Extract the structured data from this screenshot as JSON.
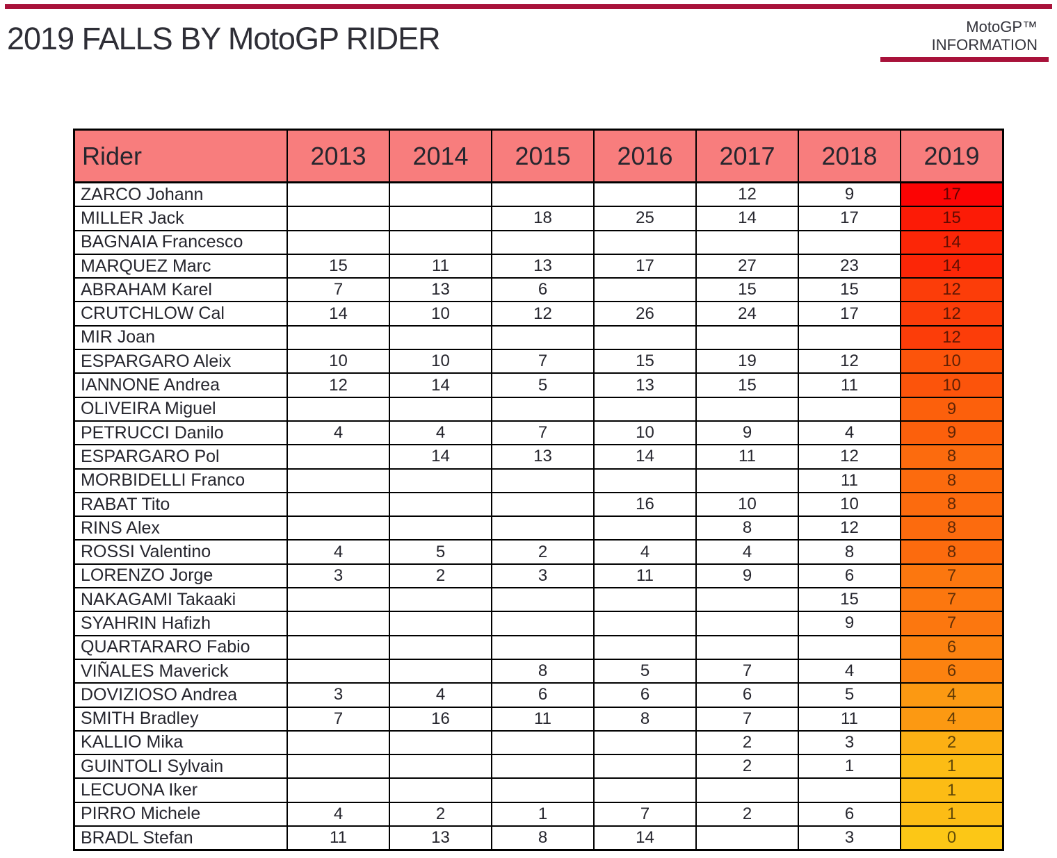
{
  "header": {
    "title": "2019 FALLS BY MotoGP RIDER",
    "brand_line1": "MotoGP™",
    "brand_line2": "INFORMATION"
  },
  "colors": {
    "accent_crimson": "#A8123A",
    "header_pink": "#F87D7D",
    "grid_black": "#000000",
    "cell_text": "#26262E",
    "scale_high": "#FC0404",
    "scale_low": "#FCC716"
  },
  "chart_data": {
    "type": "table",
    "title": "2019 FALLS BY MotoGP RIDER",
    "columns": [
      "Rider",
      "2013",
      "2014",
      "2015",
      "2016",
      "2017",
      "2018",
      "2019"
    ],
    "heatmap_column": "2019",
    "scale": {
      "max_value": 17,
      "min_value": 0,
      "max_color": "#FC0404",
      "min_color": "#FCC716"
    },
    "rows": [
      {
        "rider": "ZARCO Johann",
        "values": [
          null,
          null,
          null,
          null,
          12,
          9,
          17
        ]
      },
      {
        "rider": "MILLER Jack",
        "values": [
          null,
          null,
          18,
          25,
          14,
          17,
          15
        ]
      },
      {
        "rider": "BAGNAIA Francesco",
        "values": [
          null,
          null,
          null,
          null,
          null,
          null,
          14
        ]
      },
      {
        "rider": "MARQUEZ Marc",
        "values": [
          15,
          11,
          13,
          17,
          27,
          23,
          14
        ]
      },
      {
        "rider": "ABRAHAM Karel",
        "values": [
          7,
          13,
          6,
          null,
          15,
          15,
          12
        ]
      },
      {
        "rider": "CRUTCHLOW Cal",
        "values": [
          14,
          10,
          12,
          26,
          24,
          17,
          12
        ]
      },
      {
        "rider": "MIR Joan",
        "values": [
          null,
          null,
          null,
          null,
          null,
          null,
          12
        ]
      },
      {
        "rider": "ESPARGARO Aleix",
        "values": [
          10,
          10,
          7,
          15,
          19,
          12,
          10
        ]
      },
      {
        "rider": "IANNONE Andrea",
        "values": [
          12,
          14,
          5,
          13,
          15,
          11,
          10
        ]
      },
      {
        "rider": "OLIVEIRA Miguel",
        "values": [
          null,
          null,
          null,
          null,
          null,
          null,
          9
        ]
      },
      {
        "rider": "PETRUCCI Danilo",
        "values": [
          4,
          4,
          7,
          10,
          9,
          4,
          9
        ]
      },
      {
        "rider": "ESPARGARO Pol",
        "values": [
          null,
          14,
          13,
          14,
          11,
          12,
          8
        ]
      },
      {
        "rider": "MORBIDELLI Franco",
        "values": [
          null,
          null,
          null,
          null,
          null,
          11,
          8
        ]
      },
      {
        "rider": "RABAT Tito",
        "values": [
          null,
          null,
          null,
          16,
          10,
          10,
          8
        ]
      },
      {
        "rider": "RINS Alex",
        "values": [
          null,
          null,
          null,
          null,
          8,
          12,
          8
        ]
      },
      {
        "rider": "ROSSI Valentino",
        "values": [
          4,
          5,
          2,
          4,
          4,
          8,
          8
        ]
      },
      {
        "rider": "LORENZO Jorge",
        "values": [
          3,
          2,
          3,
          11,
          9,
          6,
          7
        ]
      },
      {
        "rider": "NAKAGAMI Takaaki",
        "values": [
          null,
          null,
          null,
          null,
          null,
          15,
          7
        ]
      },
      {
        "rider": "SYAHRIN Hafizh",
        "values": [
          null,
          null,
          null,
          null,
          null,
          9,
          7
        ]
      },
      {
        "rider": "QUARTARARO Fabio",
        "values": [
          null,
          null,
          null,
          null,
          null,
          null,
          6
        ]
      },
      {
        "rider": "VIÑALES Maverick",
        "values": [
          null,
          null,
          8,
          5,
          7,
          4,
          6
        ]
      },
      {
        "rider": "DOVIZIOSO Andrea",
        "values": [
          3,
          4,
          6,
          6,
          6,
          5,
          4
        ]
      },
      {
        "rider": "SMITH Bradley",
        "values": [
          7,
          16,
          11,
          8,
          7,
          11,
          4
        ]
      },
      {
        "rider": "KALLIO Mika",
        "values": [
          null,
          null,
          null,
          null,
          2,
          3,
          2
        ]
      },
      {
        "rider": "GUINTOLI Sylvain",
        "values": [
          null,
          null,
          null,
          null,
          2,
          1,
          1
        ]
      },
      {
        "rider": "LECUONA Iker",
        "values": [
          null,
          null,
          null,
          null,
          null,
          null,
          1
        ]
      },
      {
        "rider": "PIRRO Michele",
        "values": [
          4,
          2,
          1,
          7,
          2,
          6,
          1
        ]
      },
      {
        "rider": "BRADL Stefan",
        "values": [
          11,
          13,
          8,
          14,
          null,
          3,
          0
        ]
      }
    ]
  }
}
